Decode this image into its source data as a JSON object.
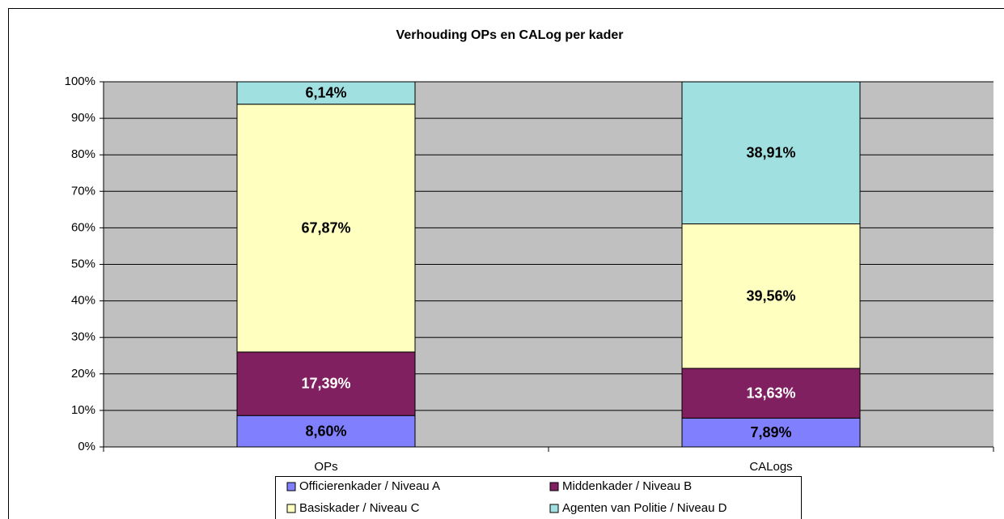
{
  "chart_data": {
    "type": "stacked_bar",
    "title": "Verhouding OPs en CALog per kader",
    "categories": [
      "OPs",
      "CALogs"
    ],
    "series": [
      {
        "name": "Officierenkader / Niveau A",
        "color": "#8080ff",
        "values": [
          8.6,
          7.89
        ],
        "value_labels": [
          "8,60%",
          "7,89%"
        ]
      },
      {
        "name": "Middenkader / Niveau B",
        "color": "#802060",
        "values": [
          17.39,
          13.63
        ],
        "value_labels": [
          "17,39%",
          "13,63%"
        ]
      },
      {
        "name": "Basiskader / Niveau C",
        "color": "#ffffc0",
        "values": [
          67.87,
          39.56
        ],
        "value_labels": [
          "67,87%",
          "39,56%"
        ]
      },
      {
        "name": "Agenten van Politie / Niveau D",
        "color": "#a0e0e0",
        "values": [
          6.14,
          38.91
        ],
        "value_labels": [
          "6,14%",
          "38,91%"
        ]
      }
    ],
    "ylim": [
      0,
      100
    ],
    "yticks": [
      {
        "value": 0,
        "label": "0%"
      },
      {
        "value": 10,
        "label": "10%"
      },
      {
        "value": 20,
        "label": "20%"
      },
      {
        "value": 30,
        "label": "30%"
      },
      {
        "value": 40,
        "label": "40%"
      },
      {
        "value": 50,
        "label": "50%"
      },
      {
        "value": 60,
        "label": "60%"
      },
      {
        "value": 70,
        "label": "70%"
      },
      {
        "value": 80,
        "label": "80%"
      },
      {
        "value": 90,
        "label": "90%"
      },
      {
        "value": 100,
        "label": "100%"
      }
    ],
    "grid": true,
    "legend": "bottom"
  }
}
